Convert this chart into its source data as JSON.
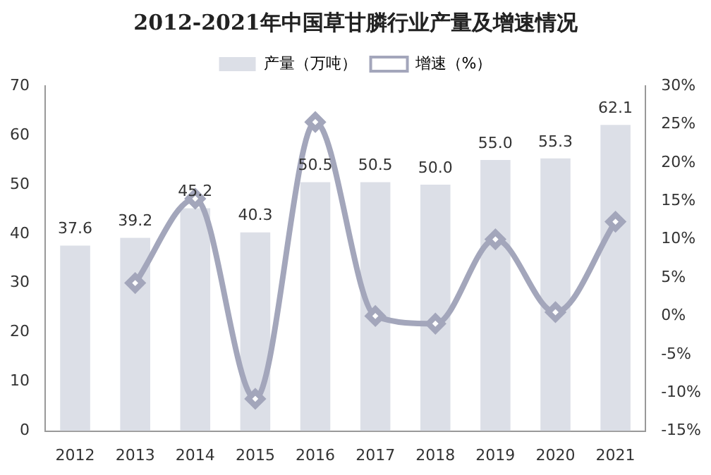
{
  "chart_data": {
    "type": "bar",
    "title": "2012-2021年中国草甘膦行业产量及增速情况",
    "categories": [
      "2012",
      "2013",
      "2014",
      "2015",
      "2016",
      "2017",
      "2018",
      "2019",
      "2020",
      "2021"
    ],
    "series": [
      {
        "name": "产量（万吨）",
        "color": "#dcdfe7",
        "values": [
          37.6,
          39.2,
          45.2,
          40.3,
          50.5,
          50.5,
          50.0,
          55.0,
          55.3,
          62.1
        ],
        "value_labels": [
          "37.6",
          "39.2",
          "45.2",
          "40.3",
          "50.5",
          "50.5",
          "50.0",
          "55.0",
          "55.3",
          "62.1"
        ]
      },
      {
        "name": "增速（%）",
        "type": "line",
        "axis": "y2",
        "color": "#a3a6bb",
        "marker": "diamond",
        "values": [
          null,
          4.3,
          15.3,
          -10.8,
          25.3,
          0,
          -1.0,
          10.0,
          0.5,
          12.3
        ]
      }
    ],
    "ylim": [
      0,
      70
    ],
    "yticks": [
      0,
      10,
      20,
      30,
      40,
      50,
      60,
      70
    ],
    "y2lim": [
      -15,
      30
    ],
    "y2ticks": [
      {
        "value": -15,
        "label": "-15%"
      },
      {
        "value": -10,
        "label": "-10%"
      },
      {
        "value": -5,
        "label": "-5%"
      },
      {
        "value": 0,
        "label": "0%"
      },
      {
        "value": 5,
        "label": "5%"
      },
      {
        "value": 10,
        "label": "10%"
      },
      {
        "value": 15,
        "label": "15%"
      },
      {
        "value": 20,
        "label": "20%"
      },
      {
        "value": 25,
        "label": "25%"
      },
      {
        "value": 30,
        "label": "30%"
      }
    ],
    "legend": "top",
    "grid": false
  }
}
